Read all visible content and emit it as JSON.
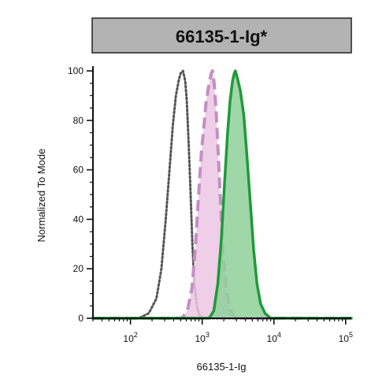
{
  "chart_data": {
    "type": "area",
    "title": "66135-1-Ig*",
    "xlabel": "66135-1-Ig",
    "ylabel": "Normalized To Mode",
    "x_scale": "log",
    "xlim": [
      30,
      120000
    ],
    "ylim": [
      0,
      100
    ],
    "x_ticks": [
      {
        "value": 100,
        "base": "10",
        "exp": "2"
      },
      {
        "value": 1000,
        "base": "10",
        "exp": "3"
      },
      {
        "value": 10000,
        "base": "10",
        "exp": "4"
      },
      {
        "value": 100000,
        "base": "10",
        "exp": "5"
      }
    ],
    "y_ticks": [
      {
        "value": 0,
        "label": "0"
      },
      {
        "value": 20,
        "label": "20"
      },
      {
        "value": 40,
        "label": "40"
      },
      {
        "value": 60,
        "label": "60"
      },
      {
        "value": 80,
        "label": "80"
      },
      {
        "value": 100,
        "label": "100"
      }
    ],
    "grid": false,
    "series": [
      {
        "style": "dotted",
        "stroke": "#555555",
        "fill": "none",
        "points": [
          [
            30,
            0
          ],
          [
            130,
            0
          ],
          [
            180,
            2
          ],
          [
            230,
            8
          ],
          [
            270,
            20
          ],
          [
            310,
            40
          ],
          [
            350,
            60
          ],
          [
            390,
            78
          ],
          [
            430,
            90
          ],
          [
            470,
            96
          ],
          [
            500,
            99
          ],
          [
            540,
            100
          ],
          [
            580,
            96
          ],
          [
            610,
            88
          ],
          [
            650,
            70
          ],
          [
            690,
            50
          ],
          [
            730,
            30
          ],
          [
            780,
            14
          ],
          [
            840,
            5
          ],
          [
            920,
            1
          ],
          [
            1050,
            0
          ],
          [
            120000,
            0
          ]
        ]
      },
      {
        "style": "dashed",
        "stroke": "#c48fc4",
        "fill": "#ecc6e4",
        "points": [
          [
            30,
            0
          ],
          [
            520,
            0
          ],
          [
            620,
            3
          ],
          [
            720,
            12
          ],
          [
            810,
            30
          ],
          [
            900,
            52
          ],
          [
            980,
            68
          ],
          [
            1060,
            78
          ],
          [
            1130,
            87
          ],
          [
            1200,
            92
          ],
          [
            1270,
            96
          ],
          [
            1340,
            99
          ],
          [
            1390,
            100
          ],
          [
            1470,
            95
          ],
          [
            1560,
            84
          ],
          [
            1700,
            62
          ],
          [
            1850,
            40
          ],
          [
            2000,
            22
          ],
          [
            2200,
            10
          ],
          [
            2500,
            3
          ],
          [
            2900,
            0
          ],
          [
            120000,
            0
          ]
        ]
      },
      {
        "style": "solid",
        "stroke": "#1f9a3a",
        "fill": "#8fd09a",
        "points": [
          [
            30,
            0
          ],
          [
            1250,
            0
          ],
          [
            1450,
            3
          ],
          [
            1650,
            14
          ],
          [
            1850,
            32
          ],
          [
            2050,
            55
          ],
          [
            2250,
            74
          ],
          [
            2450,
            88
          ],
          [
            2650,
            96
          ],
          [
            2800,
            99
          ],
          [
            2900,
            100
          ],
          [
            3100,
            97
          ],
          [
            3400,
            92
          ],
          [
            3800,
            82
          ],
          [
            4200,
            66
          ],
          [
            4700,
            46
          ],
          [
            5200,
            28
          ],
          [
            5800,
            14
          ],
          [
            6500,
            6
          ],
          [
            7500,
            2
          ],
          [
            9000,
            0
          ],
          [
            120000,
            0
          ]
        ]
      }
    ]
  }
}
